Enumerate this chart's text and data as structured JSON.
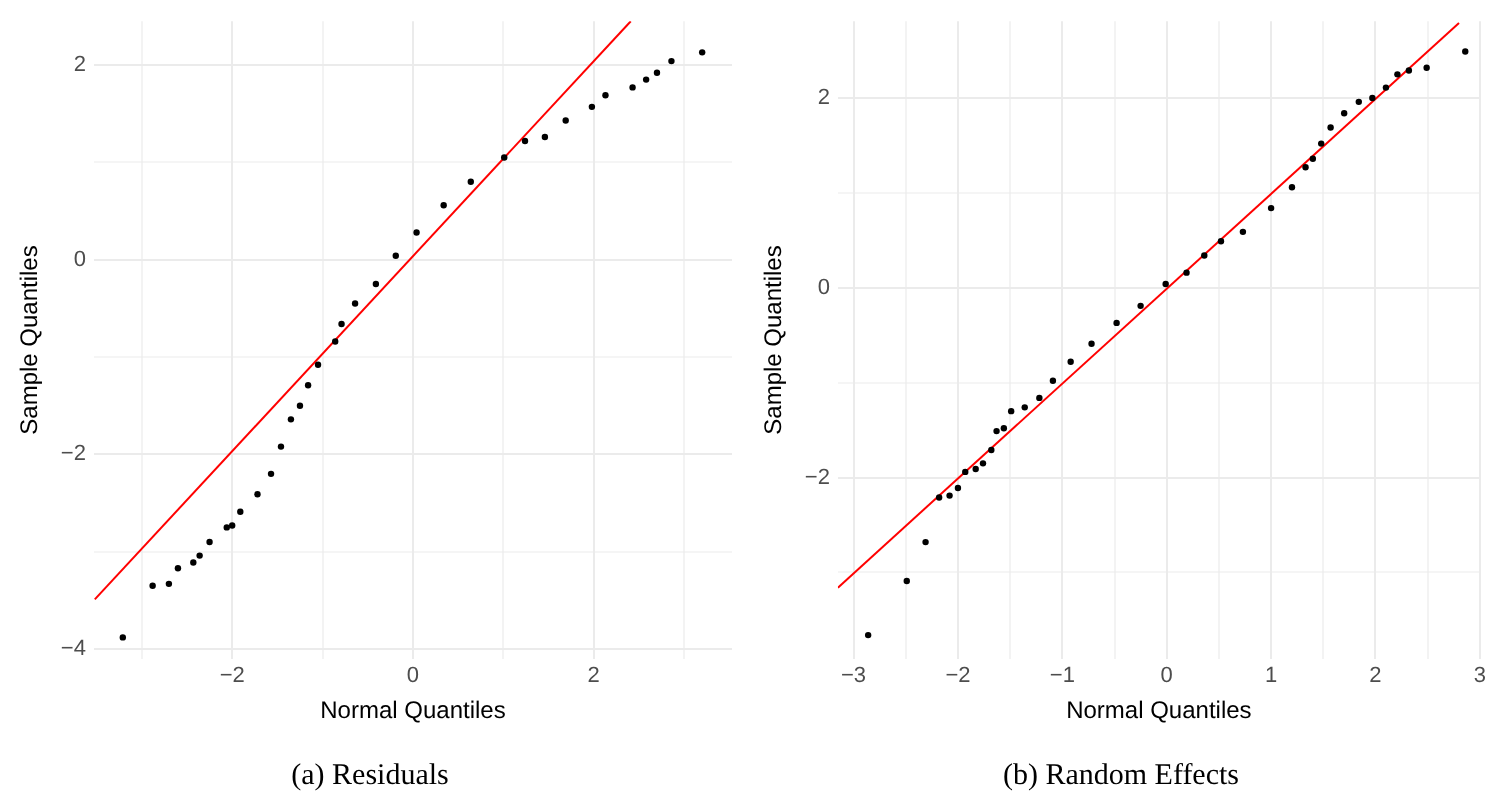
{
  "chart_data": [
    {
      "type": "scatter",
      "title": "(a) Residuals",
      "xlabel": "Normal Quantiles",
      "ylabel": "Sample Quantiles",
      "grid": true,
      "legend": false,
      "marker": "circle",
      "xlim": [
        -3.53,
        3.53
      ],
      "ylim": [
        -4.1,
        2.45
      ],
      "xticks": [
        {
          "value": -3,
          "label": null
        },
        -2,
        {
          "value": -1,
          "label": null
        },
        0,
        {
          "value": 1,
          "label": null
        },
        2,
        {
          "value": 3,
          "label": null
        }
      ],
      "yticks": [
        -4,
        {
          "value": -3,
          "label": null
        },
        -2,
        {
          "value": -1,
          "label": null
        },
        0,
        {
          "value": 1,
          "label": null
        },
        2
      ],
      "series": [
        {
          "color": "#000000",
          "x": [
            -3.21,
            -2.88,
            -2.7,
            -2.6,
            -2.43,
            -2.36,
            -2.25,
            -2.06,
            -2.0,
            -1.91,
            -1.72,
            -1.57,
            -1.46,
            -1.35,
            -1.25,
            -1.16,
            -1.05,
            -0.86,
            -0.79,
            -0.64,
            -0.41,
            -0.19,
            0.04,
            0.34,
            0.64,
            1.01,
            1.24,
            1.46,
            1.69,
            1.98,
            2.13,
            2.43,
            2.58,
            2.7,
            2.86,
            3.2
          ],
          "values": [
            -3.88,
            -3.35,
            -3.33,
            -3.17,
            -3.11,
            -3.04,
            -2.9,
            -2.75,
            -2.73,
            -2.59,
            -2.41,
            -2.2,
            -1.92,
            -1.64,
            -1.5,
            -1.29,
            -1.08,
            -0.84,
            -0.66,
            -0.45,
            -0.25,
            0.04,
            0.28,
            0.56,
            0.8,
            1.05,
            1.22,
            1.26,
            1.43,
            1.57,
            1.69,
            1.77,
            1.85,
            1.92,
            2.04,
            2.13
          ]
        },
        {
          "type": "line",
          "marker": "none",
          "color": "#ff0000",
          "x": [
            -3.52,
            2.41
          ],
          "values": [
            -3.49,
            2.45
          ]
        }
      ]
    },
    {
      "type": "scatter",
      "title": "(b) Random Effects",
      "xlabel": "Normal Quantiles",
      "ylabel": "Sample Quantiles",
      "grid": true,
      "legend": false,
      "marker": "circle",
      "xlim": [
        -3.15,
        3.0
      ],
      "ylim": [
        -3.91,
        2.81
      ],
      "xticks": [
        -3,
        {
          "value": -2.5,
          "label": null
        },
        -2,
        {
          "value": -1.5,
          "label": null
        },
        -1,
        {
          "value": -0.5,
          "label": null
        },
        0,
        {
          "value": 0.5,
          "label": null
        },
        1,
        {
          "value": 1.5,
          "label": null
        },
        2,
        {
          "value": 2.5,
          "label": null
        },
        3
      ],
      "yticks": [
        {
          "value": -3,
          "label": null
        },
        -2,
        {
          "value": -1,
          "label": null
        },
        0,
        {
          "value": 1,
          "label": null
        },
        2
      ],
      "series": [
        {
          "color": "#000000",
          "x": [
            -2.86,
            -2.49,
            -2.31,
            -2.18,
            -2.08,
            -2.0,
            -1.93,
            -1.83,
            -1.76,
            -1.68,
            -1.63,
            -1.56,
            -1.49,
            -1.36,
            -1.22,
            -1.09,
            -0.92,
            -0.72,
            -0.48,
            -0.25,
            -0.01,
            0.19,
            0.36,
            0.52,
            0.73,
            1.0,
            1.2,
            1.33,
            1.4,
            1.48,
            1.57,
            1.7,
            1.84,
            1.97,
            2.1,
            2.21,
            2.32,
            2.49,
            2.86
          ],
          "values": [
            -3.66,
            -3.09,
            -2.68,
            -2.21,
            -2.19,
            -2.11,
            -1.94,
            -1.91,
            -1.85,
            -1.71,
            -1.51,
            -1.48,
            -1.3,
            -1.26,
            -1.16,
            -0.98,
            -0.78,
            -0.59,
            -0.37,
            -0.19,
            0.04,
            0.16,
            0.34,
            0.49,
            0.59,
            0.84,
            1.06,
            1.27,
            1.36,
            1.52,
            1.69,
            1.84,
            1.96,
            2.0,
            2.11,
            2.25,
            2.29,
            2.32,
            2.49
          ]
        },
        {
          "type": "line",
          "marker": "none",
          "color": "#ff0000",
          "x": [
            -3.15,
            2.8
          ],
          "values": [
            -3.16,
            2.79
          ]
        }
      ]
    }
  ]
}
